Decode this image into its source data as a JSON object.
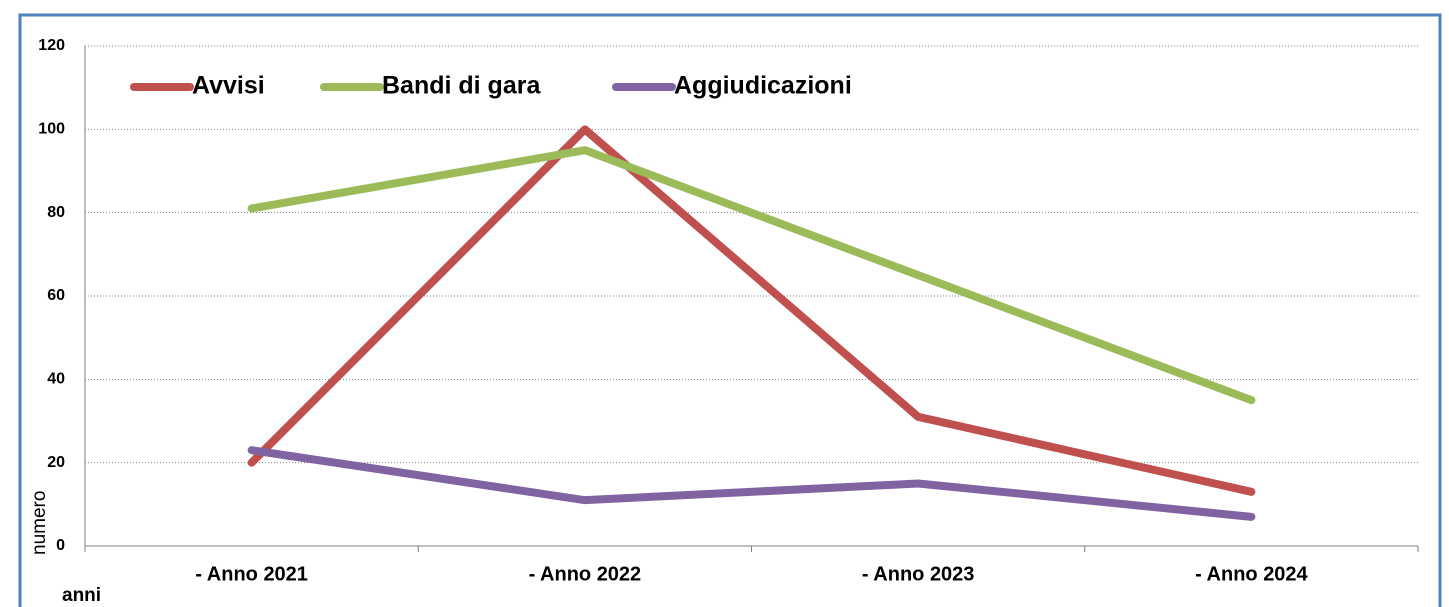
{
  "chart_data": {
    "type": "line",
    "categories": [
      "- Anno 2021",
      "- Anno 2022",
      "- Anno 2023",
      "- Anno 2024"
    ],
    "series": [
      {
        "name": "Avvisi",
        "color": "#c0504d",
        "values": [
          20,
          100,
          31,
          13
        ]
      },
      {
        "name": "Bandi di gara",
        "color": "#9bbb59",
        "values": [
          81,
          95,
          65,
          35
        ]
      },
      {
        "name": "Aggiudicazioni",
        "color": "#8064a2",
        "values": [
          23,
          11,
          15,
          7
        ]
      }
    ],
    "ylim": [
      0,
      120
    ],
    "yticks": [
      0,
      20,
      40,
      60,
      80,
      100,
      120
    ],
    "grid": true,
    "ylabel": "numero",
    "xlabel": "anni",
    "legend": "top"
  }
}
